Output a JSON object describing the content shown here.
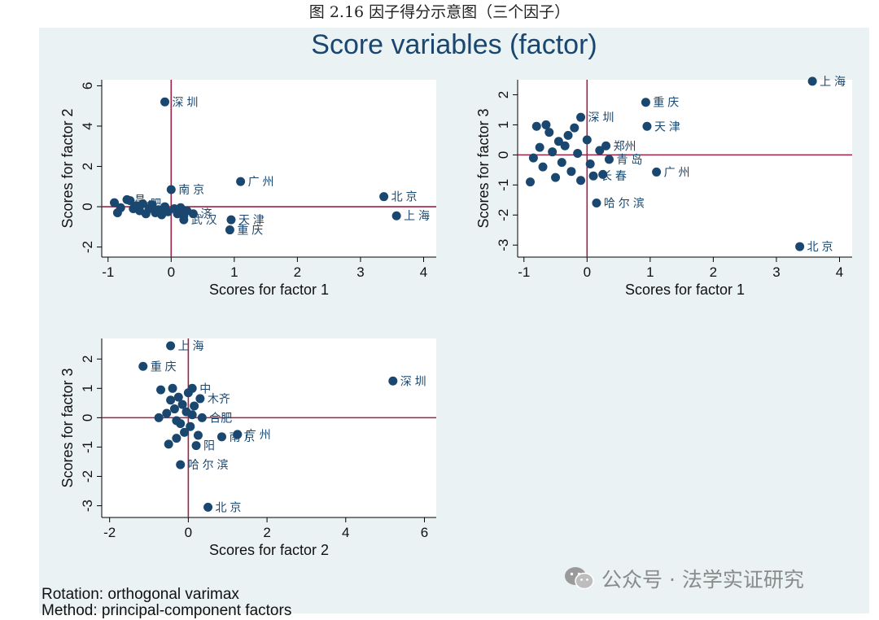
{
  "caption": "图 2.16 因子得分示意图（三个因子）",
  "graph_title": "Score variables (factor)",
  "notes": {
    "rotation": "Rotation: orthogonal varimax",
    "method": "Method: principal-component factors"
  },
  "watermark": {
    "text": "公众号 · 法学实证研究",
    "icon": "wechat-icon"
  },
  "colors": {
    "panel_bg": "#eaf2f3",
    "plot_bg": "#ffffff",
    "marker": "#1a476f",
    "refline": "#9c2246",
    "title": "#1a476f"
  },
  "chart_data": [
    {
      "type": "scatter",
      "xlabel": "Scores for factor 1",
      "ylabel": "Scores for factor 2",
      "xlim": [
        -1.1,
        4.2
      ],
      "ylim": [
        -2.5,
        6.3
      ],
      "xticks": [
        -1,
        0,
        1,
        2,
        3,
        4
      ],
      "yticks": [
        -2,
        0,
        2,
        4,
        6
      ],
      "reference_lines": {
        "x": 0,
        "y": 0
      },
      "points": [
        {
          "x": -0.1,
          "y": 5.2,
          "label": "深 圳"
        },
        {
          "x": 1.1,
          "y": 1.25,
          "label": "广 州"
        },
        {
          "x": 0.0,
          "y": 0.85,
          "label": "南 京"
        },
        {
          "x": 3.37,
          "y": 0.5,
          "label": "北 京"
        },
        {
          "x": 3.57,
          "y": -0.45,
          "label": "上 海"
        },
        {
          "x": 0.95,
          "y": -0.65,
          "label": "天 津"
        },
        {
          "x": 0.93,
          "y": -1.15,
          "label": "重 庆"
        },
        {
          "x": 0.2,
          "y": -0.65,
          "label": "武 汉"
        },
        {
          "x": 0.35,
          "y": -0.35,
          "label": "济"
        },
        {
          "x": -0.9,
          "y": 0.2,
          "label": ""
        },
        {
          "x": -0.85,
          "y": -0.3,
          "label": ""
        },
        {
          "x": -0.7,
          "y": 0.35,
          "label": "昌"
        },
        {
          "x": -0.65,
          "y": 0.3,
          "label": ""
        },
        {
          "x": -0.6,
          "y": -0.1,
          "label": ""
        },
        {
          "x": -0.55,
          "y": 0.05,
          "label": "合"
        },
        {
          "x": -0.5,
          "y": -0.2,
          "label": ""
        },
        {
          "x": -0.45,
          "y": 0.15,
          "label": "肥"
        },
        {
          "x": -0.4,
          "y": -0.35,
          "label": ""
        },
        {
          "x": -0.35,
          "y": -0.1,
          "label": ""
        },
        {
          "x": -0.3,
          "y": 0.1,
          "label": ""
        },
        {
          "x": -0.25,
          "y": -0.3,
          "label": ""
        },
        {
          "x": -0.2,
          "y": -0.15,
          "label": ""
        },
        {
          "x": -0.15,
          "y": -0.4,
          "label": ""
        },
        {
          "x": -0.1,
          "y": 0.0,
          "label": ""
        },
        {
          "x": -0.05,
          "y": -0.25,
          "label": ""
        },
        {
          "x": 0.05,
          "y": -0.1,
          "label": ""
        },
        {
          "x": 0.1,
          "y": -0.35,
          "label": ""
        },
        {
          "x": 0.15,
          "y": -0.05,
          "label": ""
        },
        {
          "x": 0.2,
          "y": -0.45,
          "label": ""
        },
        {
          "x": 0.25,
          "y": -0.2,
          "label": ""
        },
        {
          "x": -0.8,
          "y": -0.05,
          "label": ""
        }
      ]
    },
    {
      "type": "scatter",
      "xlabel": "Scores for factor 1",
      "ylabel": "Scores for factor 3",
      "xlim": [
        -1.1,
        4.2
      ],
      "ylim": [
        -3.4,
        2.5
      ],
      "xticks": [
        -1,
        0,
        1,
        2,
        3,
        4
      ],
      "yticks": [
        -3,
        -2,
        -1,
        0,
        1,
        2
      ],
      "reference_lines": {
        "x": 0,
        "y": 0
      },
      "points": [
        {
          "x": 3.57,
          "y": 2.45,
          "label": "上 海"
        },
        {
          "x": 0.93,
          "y": 1.75,
          "label": "重 庆"
        },
        {
          "x": -0.1,
          "y": 1.25,
          "label": "深 圳"
        },
        {
          "x": 0.95,
          "y": 0.95,
          "label": "天 津"
        },
        {
          "x": 1.1,
          "y": -0.57,
          "label": "广 州"
        },
        {
          "x": 0.15,
          "y": -1.6,
          "label": "哈 尔 滨"
        },
        {
          "x": 3.37,
          "y": -3.05,
          "label": "北 京"
        },
        {
          "x": 0.3,
          "y": 0.3,
          "label": "郑州"
        },
        {
          "x": 0.35,
          "y": -0.15,
          "label": "青 岛"
        },
        {
          "x": 0.1,
          "y": -0.7,
          "label": "长 春"
        },
        {
          "x": -0.8,
          "y": 0.95,
          "label": ""
        },
        {
          "x": -0.85,
          "y": -0.1,
          "label": ""
        },
        {
          "x": -0.9,
          "y": -0.9,
          "label": ""
        },
        {
          "x": -0.75,
          "y": 0.25,
          "label": ""
        },
        {
          "x": -0.7,
          "y": -0.4,
          "label": ""
        },
        {
          "x": -0.65,
          "y": 1.0,
          "label": ""
        },
        {
          "x": -0.6,
          "y": 0.75,
          "label": ""
        },
        {
          "x": -0.55,
          "y": 0.1,
          "label": ""
        },
        {
          "x": -0.5,
          "y": -0.75,
          "label": ""
        },
        {
          "x": -0.45,
          "y": 0.45,
          "label": ""
        },
        {
          "x": -0.4,
          "y": -0.25,
          "label": ""
        },
        {
          "x": -0.35,
          "y": 0.3,
          "label": ""
        },
        {
          "x": -0.3,
          "y": 0.65,
          "label": ""
        },
        {
          "x": -0.25,
          "y": -0.55,
          "label": ""
        },
        {
          "x": -0.2,
          "y": 0.9,
          "label": ""
        },
        {
          "x": -0.15,
          "y": 0.05,
          "label": ""
        },
        {
          "x": -0.1,
          "y": -0.85,
          "label": ""
        },
        {
          "x": 0.0,
          "y": 0.5,
          "label": ""
        },
        {
          "x": 0.05,
          "y": -0.3,
          "label": ""
        },
        {
          "x": 0.2,
          "y": 0.15,
          "label": ""
        },
        {
          "x": 0.25,
          "y": -0.65,
          "label": ""
        }
      ]
    },
    {
      "type": "scatter",
      "xlabel": "Scores for factor 2",
      "ylabel": "Scores for factor 3",
      "xlim": [
        -2.2,
        6.3
      ],
      "ylim": [
        -3.4,
        2.7
      ],
      "xticks": [
        -2,
        0,
        2,
        4,
        6
      ],
      "yticks": [
        -3,
        -2,
        -1,
        0,
        1,
        2
      ],
      "reference_lines": {
        "x": 0,
        "y": 0
      },
      "points": [
        {
          "x": -0.45,
          "y": 2.45,
          "label": "上 海"
        },
        {
          "x": -1.15,
          "y": 1.75,
          "label": "重 庆"
        },
        {
          "x": 5.2,
          "y": 1.25,
          "label": "深 圳"
        },
        {
          "x": 1.25,
          "y": -0.57,
          "label": "广 州"
        },
        {
          "x": -0.2,
          "y": -1.6,
          "label": "哈 尔 滨"
        },
        {
          "x": 0.5,
          "y": -3.05,
          "label": "北 京"
        },
        {
          "x": 0.85,
          "y": -0.65,
          "label": "南 京"
        },
        {
          "x": 0.1,
          "y": 1.0,
          "label": "中"
        },
        {
          "x": 0.3,
          "y": 0.65,
          "label": "木齐"
        },
        {
          "x": 0.35,
          "y": 0.0,
          "label": "合肥"
        },
        {
          "x": 0.2,
          "y": -0.95,
          "label": "阳"
        },
        {
          "x": -0.7,
          "y": 0.95,
          "label": ""
        },
        {
          "x": -0.75,
          "y": 0.0,
          "label": ""
        },
        {
          "x": -0.5,
          "y": -0.9,
          "label": ""
        },
        {
          "x": -0.4,
          "y": 1.0,
          "label": ""
        },
        {
          "x": -0.35,
          "y": 0.3,
          "label": ""
        },
        {
          "x": -0.3,
          "y": -0.7,
          "label": ""
        },
        {
          "x": -0.25,
          "y": 0.7,
          "label": ""
        },
        {
          "x": -0.2,
          "y": -0.2,
          "label": ""
        },
        {
          "x": -0.15,
          "y": 0.45,
          "label": ""
        },
        {
          "x": -0.1,
          "y": -0.5,
          "label": ""
        },
        {
          "x": -0.05,
          "y": 0.2,
          "label": ""
        },
        {
          "x": 0.0,
          "y": 0.85,
          "label": ""
        },
        {
          "x": 0.05,
          "y": -0.3,
          "label": ""
        },
        {
          "x": 0.15,
          "y": 0.4,
          "label": ""
        },
        {
          "x": 0.25,
          "y": -0.6,
          "label": ""
        },
        {
          "x": -0.45,
          "y": 0.6,
          "label": ""
        },
        {
          "x": -0.3,
          "y": -0.1,
          "label": ""
        },
        {
          "x": 0.1,
          "y": 0.1,
          "label": ""
        },
        {
          "x": -0.55,
          "y": 0.15,
          "label": ""
        }
      ]
    }
  ]
}
